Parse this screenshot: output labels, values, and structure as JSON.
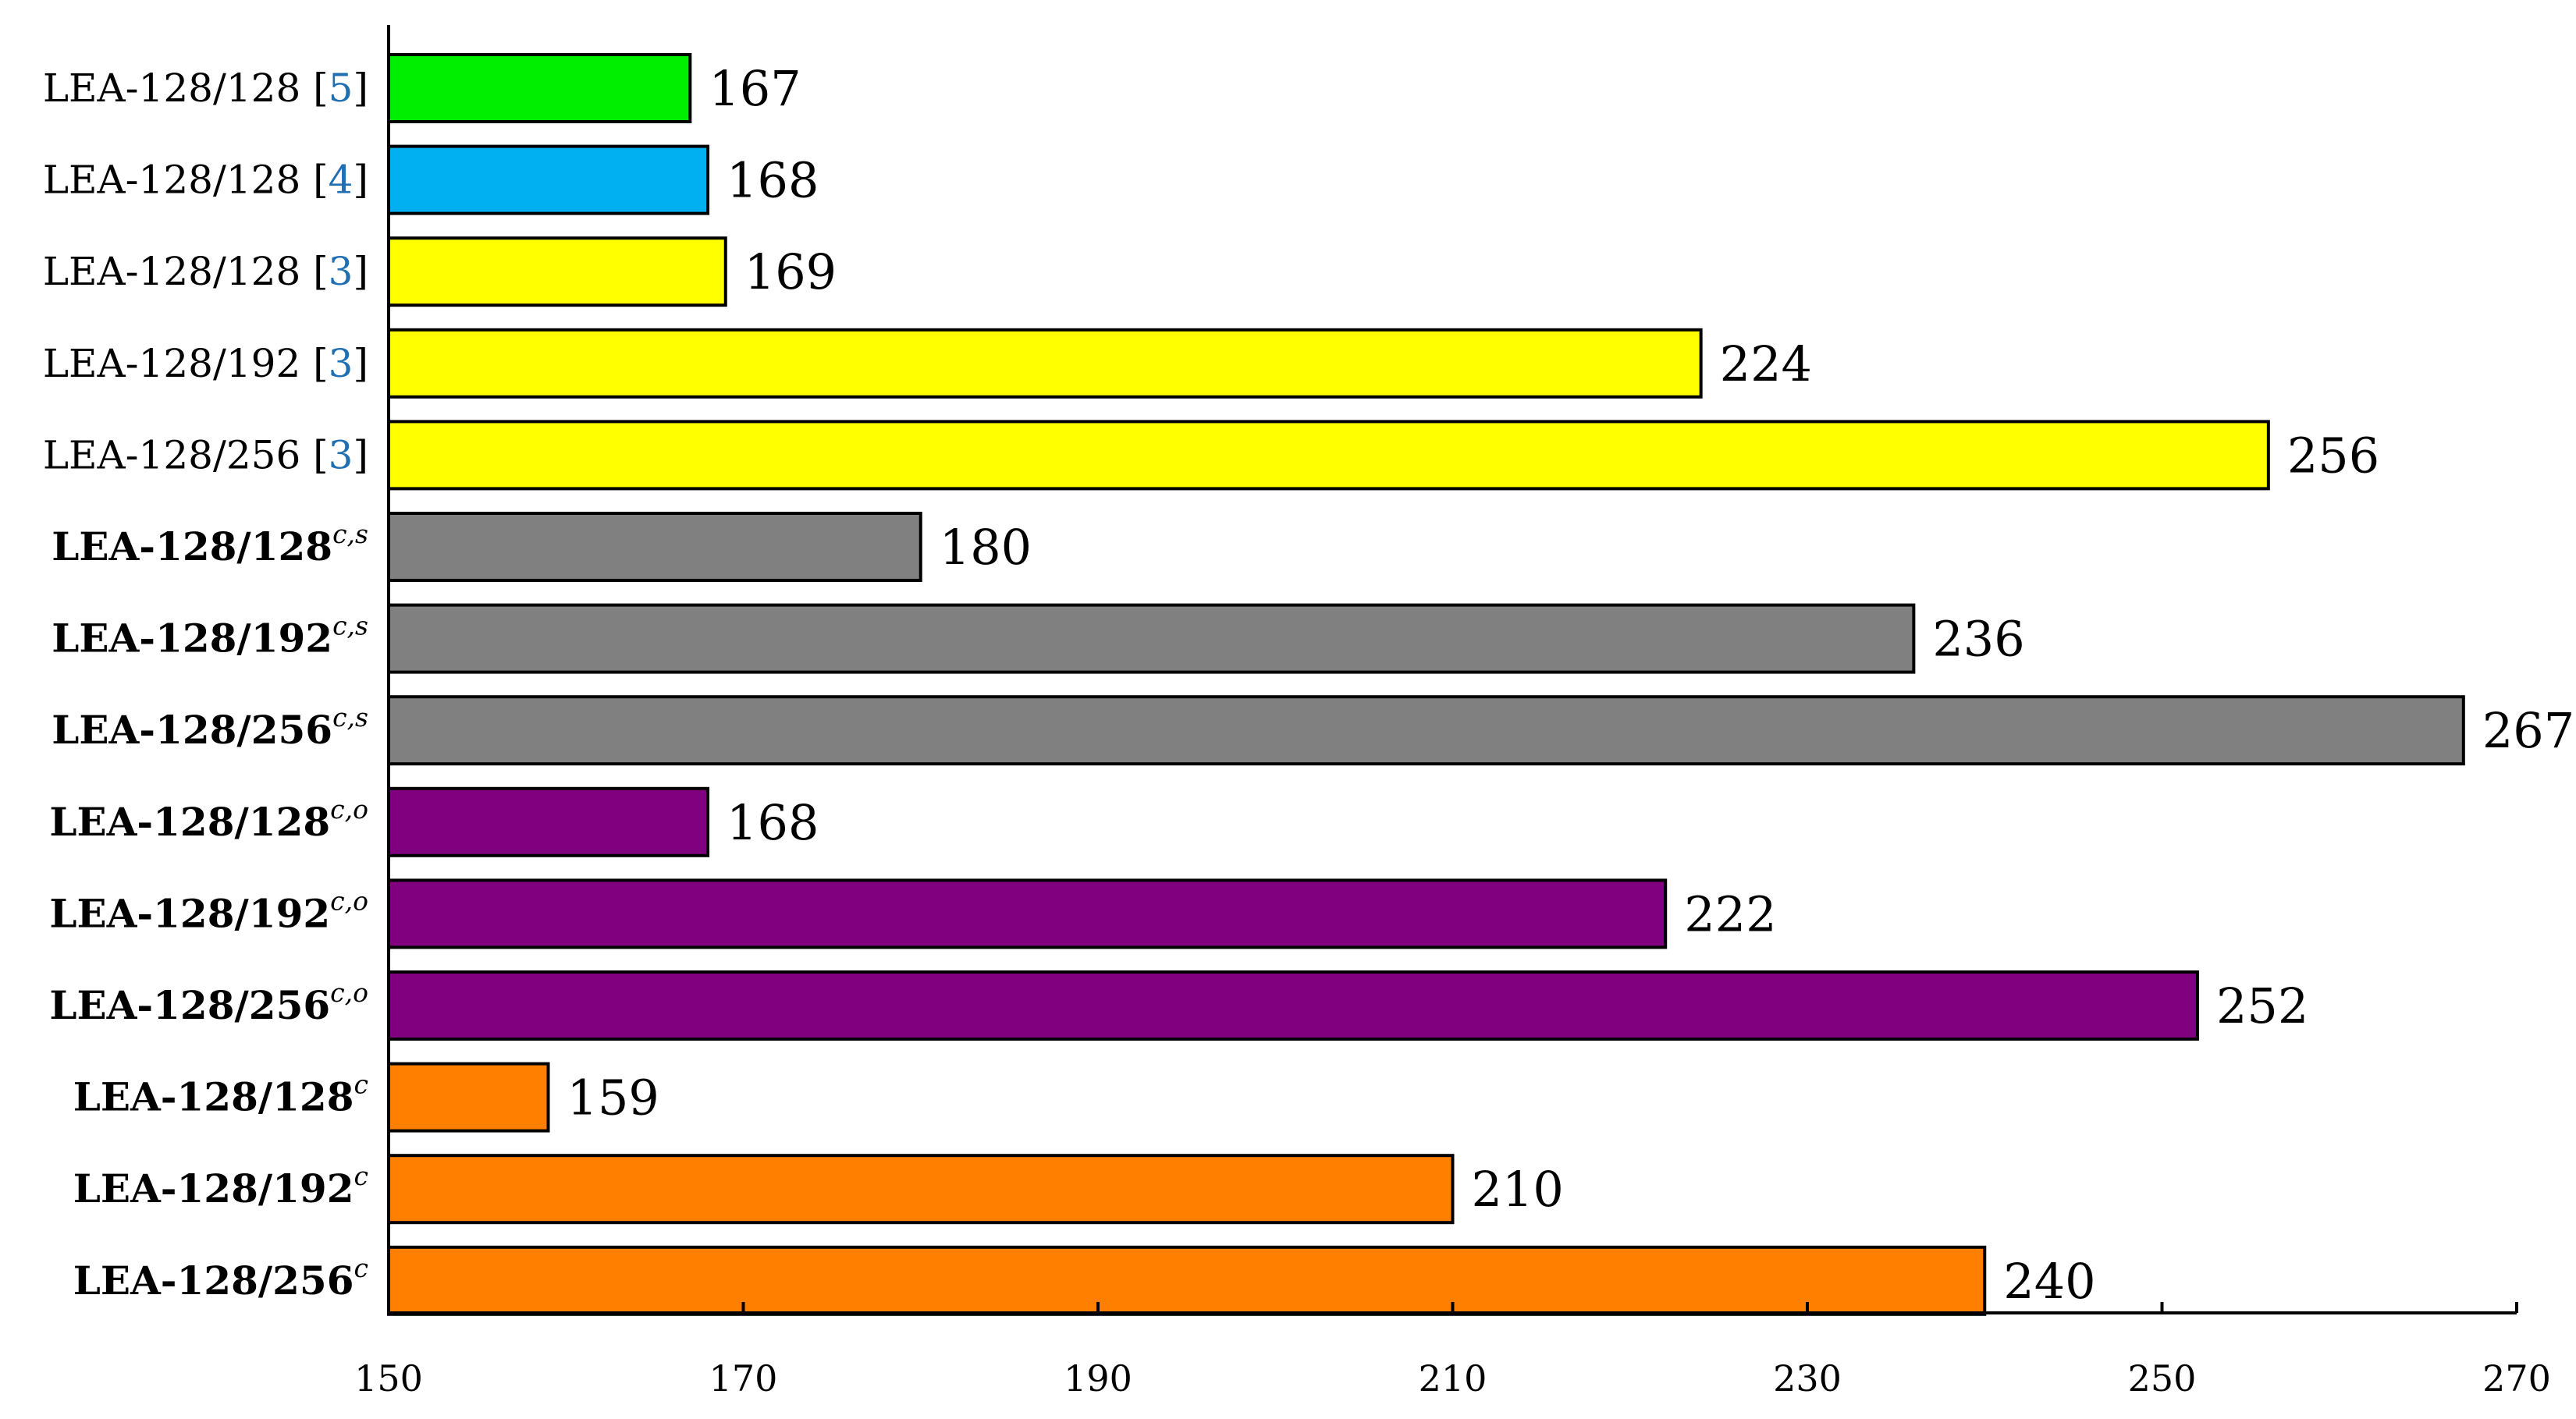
{
  "chart_data": {
    "type": "bar",
    "orientation": "horizontal",
    "title": "",
    "xlabel": "",
    "ylabel": "",
    "xlim": [
      150,
      270
    ],
    "xticks": [
      150,
      170,
      190,
      210,
      230,
      250,
      270
    ],
    "grid": false,
    "legend": "none",
    "bars": [
      {
        "label": "LEA-128/128 [",
        "cite": "5",
        "close": "]",
        "sup": "",
        "bold": false,
        "value": 167,
        "value_label": "167",
        "color": "#00ee00"
      },
      {
        "label": "LEA-128/128 [",
        "cite": "4",
        "close": "]",
        "sup": "",
        "bold": false,
        "value": 168,
        "value_label": "168",
        "color": "#00b0f0"
      },
      {
        "label": "LEA-128/128 [",
        "cite": "3",
        "close": "]",
        "sup": "",
        "bold": false,
        "value": 169,
        "value_label": "169",
        "color": "#ffff00"
      },
      {
        "label": "LEA-128/192 [",
        "cite": "3",
        "close": "]",
        "sup": "",
        "bold": false,
        "value": 224,
        "value_label": "224",
        "color": "#ffff00"
      },
      {
        "label": "LEA-128/256 [",
        "cite": "3",
        "close": "]",
        "sup": "",
        "bold": false,
        "value": 256,
        "value_label": "256",
        "color": "#ffff00"
      },
      {
        "label": "LEA-128/128",
        "cite": "",
        "close": "",
        "sup": "c,s",
        "bold": true,
        "value": 180,
        "value_label": "180",
        "color": "#808080"
      },
      {
        "label": "LEA-128/192",
        "cite": "",
        "close": "",
        "sup": "c,s",
        "bold": true,
        "value": 236,
        "value_label": "236",
        "color": "#808080"
      },
      {
        "label": "LEA-128/256",
        "cite": "",
        "close": "",
        "sup": "c,s",
        "bold": true,
        "value": 267,
        "value_label": "267",
        "color": "#808080"
      },
      {
        "label": "LEA-128/128",
        "cite": "",
        "close": "",
        "sup": "c,o",
        "bold": true,
        "value": 168,
        "value_label": "168",
        "color": "#800080"
      },
      {
        "label": "LEA-128/192",
        "cite": "",
        "close": "",
        "sup": "c,o",
        "bold": true,
        "value": 222,
        "value_label": "222",
        "color": "#800080"
      },
      {
        "label": "LEA-128/256",
        "cite": "",
        "close": "",
        "sup": "c,o",
        "bold": true,
        "value": 252,
        "value_label": "252",
        "color": "#800080"
      },
      {
        "label": "LEA-128/128",
        "cite": "",
        "close": "",
        "sup": "c",
        "bold": true,
        "value": 159,
        "value_label": "159",
        "color": "#ff8000"
      },
      {
        "label": "LEA-128/192",
        "cite": "",
        "close": "",
        "sup": "c",
        "bold": true,
        "value": 210,
        "value_label": "210",
        "color": "#ff8000"
      },
      {
        "label": "LEA-128/256",
        "cite": "",
        "close": "",
        "sup": "c",
        "bold": true,
        "value": 240,
        "value_label": "240",
        "color": "#ff8000"
      }
    ]
  }
}
